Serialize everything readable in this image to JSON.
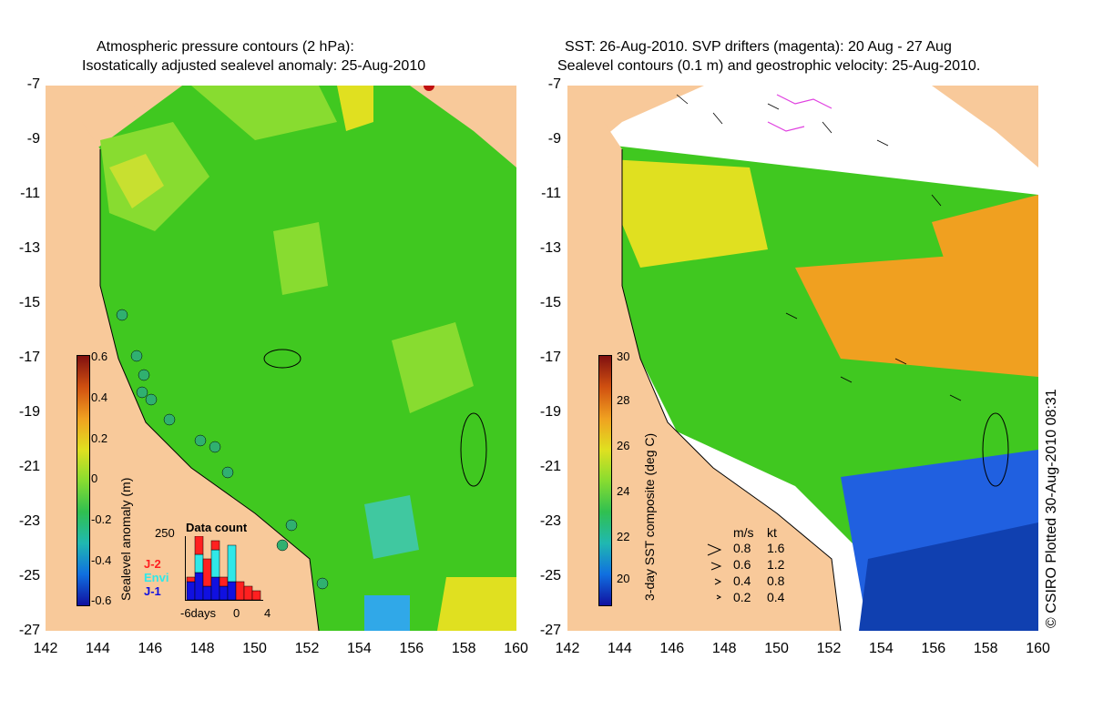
{
  "left_panel": {
    "title_line1": "Atmospheric pressure contours (2 hPa):",
    "title_line2": "Isostatically adjusted sealevel anomaly: 25-Aug-2010",
    "colorbar": {
      "label": "Sealevel anomaly (m)",
      "ticks": [
        "0.6",
        "0.4",
        "0.2",
        "0",
        "-0.2",
        "-0.4",
        "-0.6"
      ]
    },
    "data_count": {
      "title": "Data count",
      "ymax_label": "250",
      "x_labels": [
        "-6days",
        "0",
        "4"
      ],
      "legend": [
        {
          "label": "J-2",
          "color": "#ff2020"
        },
        {
          "label": "Envi",
          "color": "#30e8e8"
        },
        {
          "label": "J-1",
          "color": "#1010e0"
        }
      ]
    }
  },
  "right_panel": {
    "title_line1": "SST: 26-Aug-2010. SVP drifters (magenta): 20 Aug - 27 Aug",
    "title_line2": "Sealevel contours (0.1 m) and geostrophic velocity: 25-Aug-2010.",
    "colorbar": {
      "label": "3-day SST composite (deg C)",
      "ticks": [
        "30",
        "28",
        "26",
        "24",
        "22",
        "20"
      ]
    },
    "velocity_legend": {
      "header_ms": "m/s",
      "header_kt": "kt",
      "rows": [
        {
          "ms": "0.8",
          "kt": "1.6"
        },
        {
          "ms": "0.6",
          "kt": "1.2"
        },
        {
          "ms": "0.4",
          "kt": "0.8"
        },
        {
          "ms": "0.2",
          "kt": "0.4"
        }
      ]
    }
  },
  "y_axis_labels": [
    "-7",
    "-9",
    "-11",
    "-13",
    "-15",
    "-17",
    "-19",
    "-21",
    "-23",
    "-25",
    "-27"
  ],
  "x_axis_labels": [
    "142",
    "144",
    "146",
    "148",
    "150",
    "152",
    "154",
    "156",
    "158",
    "160"
  ],
  "credit": "© CSIRO Plotted 30-Aug-2010 08:31",
  "colors": {
    "land": "#f8c99a",
    "sea_green": "#40c820",
    "sea_light": "#88dc30",
    "sea_yellow": "#e0e020",
    "sst_orange": "#f0a020",
    "sst_blue": "#2060e0",
    "cloud": "#ffffff"
  }
}
